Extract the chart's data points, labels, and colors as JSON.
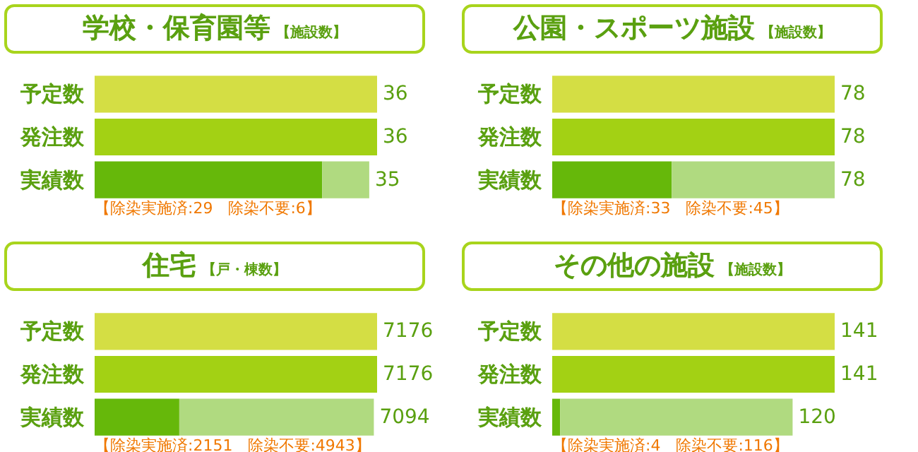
{
  "chart_data": [
    {
      "type": "bar",
      "orientation": "horizontal",
      "stacked": true,
      "title": "学校・保育園等",
      "subtitle": "【施設数】",
      "categories": [
        "予定数",
        "発注数",
        "実績数"
      ],
      "series": [
        {
          "colors": [
            "#d4de44",
            "#a3d114",
            "#66b80a"
          ],
          "values": [
            36,
            36,
            29
          ],
          "value_labels": [
            "36",
            "36",
            null
          ]
        },
        {
          "color": "#b0da80",
          "values": [
            null,
            null,
            6
          ]
        }
      ],
      "totals": [
        null,
        null,
        "35"
      ],
      "annotations": [
        "【除染実施済:29　除染不要:6】"
      ]
    },
    {
      "type": "bar",
      "orientation": "horizontal",
      "stacked": true,
      "title": "公園・スポーツ施設",
      "subtitle": "【施設数】",
      "categories": [
        "予定数",
        "発注数",
        "実績数"
      ],
      "series": [
        {
          "colors": [
            "#d4de44",
            "#a3d114",
            "#66b80a"
          ],
          "values": [
            78,
            78,
            33
          ],
          "value_labels": [
            "78",
            "78",
            null
          ]
        },
        {
          "color": "#b0da80",
          "values": [
            null,
            null,
            45
          ]
        }
      ],
      "totals": [
        null,
        null,
        "78"
      ],
      "annotations": [
        "【除染実施済:33　除染不要:45】"
      ]
    },
    {
      "type": "bar",
      "orientation": "horizontal",
      "stacked": true,
      "title": "住宅",
      "subtitle": "【戸・棟数】",
      "categories": [
        "予定数",
        "発注数",
        "実績数"
      ],
      "series": [
        {
          "colors": [
            "#d4de44",
            "#a3d114",
            "#66b80a"
          ],
          "values": [
            7176,
            7176,
            2151
          ],
          "value_labels": [
            "7176",
            "7176",
            null
          ]
        },
        {
          "color": "#b0da80",
          "values": [
            null,
            null,
            4943
          ]
        }
      ],
      "totals": [
        null,
        null,
        "7094"
      ],
      "annotations": [
        "【除染実施済:2151　除染不要:4943】"
      ]
    },
    {
      "type": "bar",
      "orientation": "horizontal",
      "stacked": true,
      "title": "その他の施設",
      "subtitle": "【施設数】",
      "categories": [
        "予定数",
        "発注数",
        "実績数"
      ],
      "series": [
        {
          "colors": [
            "#d4de44",
            "#a3d114",
            "#66b80a"
          ],
          "values": [
            141,
            141,
            4
          ],
          "value_labels": [
            "141",
            "141",
            null
          ]
        },
        {
          "color": "#b0da80",
          "values": [
            null,
            null,
            116
          ]
        }
      ],
      "totals": [
        null,
        null,
        "120"
      ],
      "annotations": [
        "【除染実施済:4　除染不要:116】"
      ]
    }
  ]
}
